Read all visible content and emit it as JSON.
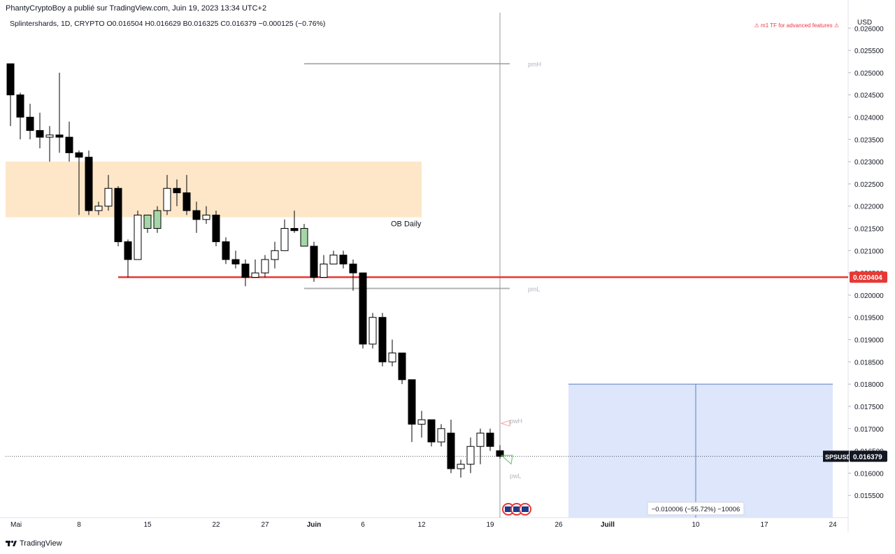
{
  "header": {
    "publisher": "PhantyCryptoBoy a publié sur TradingView.com, Juin 19, 2023 13:34 UTC+2",
    "symbol_line": "Splintershards, 1D, CRYPTO  O0.016504  H0.016629  B0.016325  C0.016379  −0.000125 (−0.76%)",
    "warning": "⚠ m1 TF for advanced features ⚠",
    "currency": "USD"
  },
  "footer": {
    "brand": "TradingView",
    "logo_icon": "tradingview-logo-icon"
  },
  "colors": {
    "up_body": "#ffffff",
    "up_hollow_green": "#a5d6a7",
    "down_body": "#000000",
    "ob_zone": "#fde7c8",
    "support_line": "#e53935",
    "target_box": "#dde6fb",
    "target_border": "#5c7ec7",
    "pm_lines": "#b2b2b2",
    "cursor_line": "#9598a1"
  },
  "chart_data": {
    "type": "candlestick",
    "ylim": [
      0.015,
      0.02635
    ],
    "y_ticks": [
      "0.026000",
      "0.025500",
      "0.025000",
      "0.024500",
      "0.024000",
      "0.023500",
      "0.023000",
      "0.022500",
      "0.022000",
      "0.021500",
      "0.021000",
      "0.020500",
      "0.020000",
      "0.019500",
      "0.019000",
      "0.018500",
      "0.018000",
      "0.017500",
      "0.017000",
      "0.016500",
      "0.016000",
      "0.015500"
    ],
    "x_ticks": [
      {
        "label": "Mai",
        "day": 1
      },
      {
        "label": "8",
        "day": 8
      },
      {
        "label": "15",
        "day": 15
      },
      {
        "label": "22",
        "day": 22
      },
      {
        "label": "27",
        "day": 27
      },
      {
        "label": "Juin",
        "day": 32
      },
      {
        "label": "6",
        "day": 37
      },
      {
        "label": "12",
        "day": 43
      },
      {
        "label": "19",
        "day": 50
      },
      {
        "label": "26",
        "day": 57
      },
      {
        "label": "Juill",
        "day": 62
      },
      {
        "label": "10",
        "day": 71
      },
      {
        "label": "17",
        "day": 78
      },
      {
        "label": "24",
        "day": 85
      }
    ],
    "candles": [
      {
        "day": 1,
        "o": 0.0252,
        "h": 0.0252,
        "l": 0.0238,
        "c": 0.0245
      },
      {
        "day": 2,
        "o": 0.0245,
        "h": 0.02455,
        "l": 0.0235,
        "c": 0.024
      },
      {
        "day": 3,
        "o": 0.024,
        "h": 0.0243,
        "l": 0.0235,
        "c": 0.0237
      },
      {
        "day": 4,
        "o": 0.0237,
        "h": 0.0241,
        "l": 0.0233,
        "c": 0.02355
      },
      {
        "day": 5,
        "o": 0.02355,
        "h": 0.0238,
        "l": 0.023,
        "c": 0.0236
      },
      {
        "day": 6,
        "o": 0.0236,
        "h": 0.025,
        "l": 0.0232,
        "c": 0.02355
      },
      {
        "day": 7,
        "o": 0.02355,
        "h": 0.0239,
        "l": 0.023,
        "c": 0.0232
      },
      {
        "day": 8,
        "o": 0.0232,
        "h": 0.02325,
        "l": 0.0218,
        "c": 0.0231
      },
      {
        "day": 9,
        "o": 0.0231,
        "h": 0.02325,
        "l": 0.0218,
        "c": 0.0219
      },
      {
        "day": 10,
        "o": 0.0219,
        "h": 0.0221,
        "l": 0.0218,
        "c": 0.022
      },
      {
        "day": 11,
        "o": 0.022,
        "h": 0.0227,
        "l": 0.0219,
        "c": 0.0224
      },
      {
        "day": 12,
        "o": 0.0224,
        "h": 0.02245,
        "l": 0.0211,
        "c": 0.0212
      },
      {
        "day": 13,
        "o": 0.0212,
        "h": 0.02125,
        "l": 0.0204,
        "c": 0.0208
      },
      {
        "day": 14,
        "o": 0.0208,
        "h": 0.0219,
        "l": 0.0208,
        "c": 0.0218
      },
      {
        "day": 15,
        "o": 0.0215,
        "h": 0.0218,
        "l": 0.0214,
        "c": 0.0218,
        "green": true
      },
      {
        "day": 16,
        "o": 0.0215,
        "h": 0.022,
        "l": 0.0214,
        "c": 0.0219,
        "green": true
      },
      {
        "day": 17,
        "o": 0.0219,
        "h": 0.0227,
        "l": 0.0218,
        "c": 0.0224
      },
      {
        "day": 18,
        "o": 0.0224,
        "h": 0.0226,
        "l": 0.022,
        "c": 0.0223
      },
      {
        "day": 19,
        "o": 0.0223,
        "h": 0.0227,
        "l": 0.0218,
        "c": 0.0219
      },
      {
        "day": 20,
        "o": 0.0219,
        "h": 0.0221,
        "l": 0.0214,
        "c": 0.0217
      },
      {
        "day": 21,
        "o": 0.0217,
        "h": 0.022,
        "l": 0.0216,
        "c": 0.0218
      },
      {
        "day": 22,
        "o": 0.0218,
        "h": 0.0219,
        "l": 0.0211,
        "c": 0.0212
      },
      {
        "day": 23,
        "o": 0.0212,
        "h": 0.0213,
        "l": 0.0207,
        "c": 0.0208
      },
      {
        "day": 24,
        "o": 0.0208,
        "h": 0.021,
        "l": 0.0206,
        "c": 0.0207
      },
      {
        "day": 25,
        "o": 0.0207,
        "h": 0.0208,
        "l": 0.0202,
        "c": 0.0204
      },
      {
        "day": 26,
        "o": 0.0204,
        "h": 0.0208,
        "l": 0.0204,
        "c": 0.0205
      },
      {
        "day": 27,
        "o": 0.0205,
        "h": 0.0209,
        "l": 0.0204,
        "c": 0.0208
      },
      {
        "day": 28,
        "o": 0.0208,
        "h": 0.0212,
        "l": 0.0206,
        "c": 0.021
      },
      {
        "day": 29,
        "o": 0.021,
        "h": 0.0217,
        "l": 0.021,
        "c": 0.0215
      },
      {
        "day": 30,
        "o": 0.0215,
        "h": 0.0219,
        "l": 0.0214,
        "c": 0.02145
      },
      {
        "day": 31,
        "o": 0.0211,
        "h": 0.0216,
        "l": 0.0211,
        "c": 0.0215,
        "green": true
      },
      {
        "day": 32,
        "o": 0.0211,
        "h": 0.0212,
        "l": 0.0203,
        "c": 0.0204
      },
      {
        "day": 33,
        "o": 0.0204,
        "h": 0.0209,
        "l": 0.0204,
        "c": 0.0207
      },
      {
        "day": 34,
        "o": 0.0207,
        "h": 0.021,
        "l": 0.0207,
        "c": 0.0209
      },
      {
        "day": 35,
        "o": 0.0209,
        "h": 0.021,
        "l": 0.0206,
        "c": 0.0207
      },
      {
        "day": 36,
        "o": 0.0207,
        "h": 0.0208,
        "l": 0.0201,
        "c": 0.0205
      },
      {
        "day": 37,
        "o": 0.0205,
        "h": 0.02045,
        "l": 0.0188,
        "c": 0.0189
      },
      {
        "day": 38,
        "o": 0.0189,
        "h": 0.0196,
        "l": 0.0188,
        "c": 0.0195
      },
      {
        "day": 39,
        "o": 0.0195,
        "h": 0.0196,
        "l": 0.0184,
        "c": 0.0185
      },
      {
        "day": 40,
        "o": 0.0185,
        "h": 0.019,
        "l": 0.0184,
        "c": 0.0187
      },
      {
        "day": 41,
        "o": 0.0187,
        "h": 0.0187,
        "l": 0.018,
        "c": 0.0181
      },
      {
        "day": 42,
        "o": 0.0181,
        "h": 0.0181,
        "l": 0.0167,
        "c": 0.0171
      },
      {
        "day": 43,
        "o": 0.0171,
        "h": 0.0174,
        "l": 0.0168,
        "c": 0.0172
      },
      {
        "day": 44,
        "o": 0.0172,
        "h": 0.0172,
        "l": 0.0166,
        "c": 0.0167
      },
      {
        "day": 45,
        "o": 0.0167,
        "h": 0.0171,
        "l": 0.0166,
        "c": 0.017
      },
      {
        "day": 46,
        "o": 0.0169,
        "h": 0.0172,
        "l": 0.016,
        "c": 0.0161
      },
      {
        "day": 47,
        "o": 0.0161,
        "h": 0.0163,
        "l": 0.0159,
        "c": 0.0162
      },
      {
        "day": 48,
        "o": 0.0162,
        "h": 0.0168,
        "l": 0.016,
        "c": 0.0166
      },
      {
        "day": 49,
        "o": 0.0166,
        "h": 0.017,
        "l": 0.0162,
        "c": 0.0169
      },
      {
        "day": 50,
        "o": 0.0169,
        "h": 0.017,
        "l": 0.0165,
        "c": 0.0166
      },
      {
        "day": 51,
        "o": 0.016504,
        "h": 0.016629,
        "l": 0.016325,
        "c": 0.016379
      }
    ],
    "annotations": {
      "ob_zone": {
        "label": "OB Daily",
        "top": 0.023,
        "bottom": 0.02175,
        "from_day": 0,
        "to_day": 43
      },
      "support_line": {
        "price": 0.020404,
        "label": "0.020404",
        "from_day": 12
      },
      "pmH": {
        "label": "pmH",
        "price": 0.0252,
        "from_day": 31,
        "to_day": 51
      },
      "pmL": {
        "label": "pmL",
        "price": 0.02015,
        "from_day": 31,
        "to_day": 51
      },
      "pwH": {
        "label": "pwH",
        "price": 0.01715
      },
      "pwL": {
        "label": "pwL",
        "price": 0.01595
      },
      "cursor_day": 51,
      "current_price": {
        "symbol": "SPSUSD",
        "value": "0.016379",
        "price": 0.016379
      },
      "target_box": {
        "top": 0.018,
        "from_day": 58,
        "to_day": 85,
        "mid_day": 71,
        "label": "−0.010006 (−55.72%) −10006"
      }
    },
    "title": "",
    "xlabel": "",
    "ylabel": ""
  }
}
